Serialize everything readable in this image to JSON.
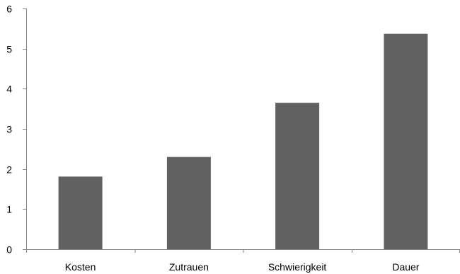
{
  "chart_data": {
    "type": "bar",
    "title": "",
    "xlabel": "",
    "ylabel": "",
    "categories": [
      "Kosten",
      "Zutrauen",
      "Schwierigkeit",
      "Dauer"
    ],
    "values": [
      1.81,
      2.3,
      3.65,
      5.37
    ],
    "ylim": [
      0,
      6
    ],
    "yticks": [
      0,
      1,
      2,
      3,
      4,
      5,
      6
    ],
    "ytick_labels": [
      "0",
      "1",
      "2",
      "3",
      "4",
      "5",
      "6"
    ],
    "grid": false,
    "legend": "none",
    "bar_color": "#616161",
    "axis_color": "#868686"
  }
}
